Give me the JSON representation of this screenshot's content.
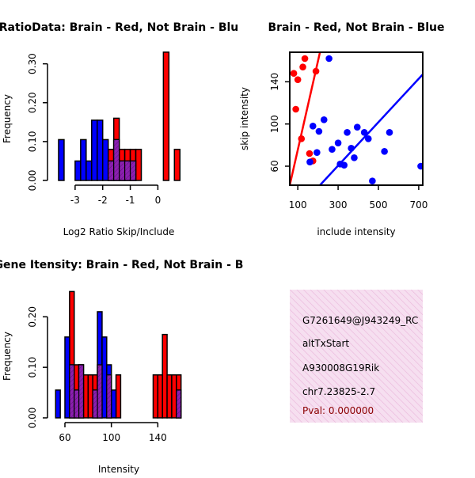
{
  "chart_data": [
    {
      "id": "hist_ratio",
      "type": "bar",
      "title": "RatioData: Brain - Red, Not Brain - Blu",
      "xlabel": "Log2 Ratio Skip/Include",
      "ylabel": "Frequency",
      "xlim": [
        -3.8,
        1.05
      ],
      "ylim": [
        0,
        0.34
      ],
      "xticks": [
        "-3",
        "-2",
        "-1",
        "0"
      ],
      "xtick_values": [
        -3,
        -2,
        -1,
        0
      ],
      "yticks": [
        "0.00",
        "0.10",
        "0.20",
        "0.30"
      ],
      "ytick_values": [
        0,
        0.1,
        0.2,
        0.3
      ],
      "series": [
        {
          "name": "Brain",
          "color": "#ff0000",
          "bins": [
            [
              -1.8,
              -1.6,
              0.08
            ],
            [
              -1.6,
              -1.4,
              0.16
            ],
            [
              -1.4,
              -1.2,
              0.08
            ],
            [
              -1.2,
              -1.0,
              0.08
            ],
            [
              -1.0,
              -0.8,
              0.08
            ],
            [
              -0.8,
              -0.6,
              0.08
            ],
            [
              0.2,
              0.4,
              0.33
            ],
            [
              0.6,
              0.8,
              0.08
            ]
          ]
        },
        {
          "name": "Not Brain",
          "color": "#0000ff",
          "bins": [
            [
              -3.6,
              -3.4,
              0.105
            ],
            [
              -3.0,
              -2.8,
              0.05
            ],
            [
              -2.8,
              -2.6,
              0.105
            ],
            [
              -2.6,
              -2.4,
              0.05
            ],
            [
              -2.4,
              -2.2,
              0.155
            ],
            [
              -2.2,
              -2.0,
              0.155
            ],
            [
              -2.0,
              -1.8,
              0.105
            ],
            [
              -1.8,
              -1.6,
              0.05
            ],
            [
              -1.6,
              -1.4,
              0.105
            ],
            [
              -1.4,
              -1.2,
              0.05
            ],
            [
              -1.2,
              -1.0,
              0.05
            ],
            [
              -1.0,
              -0.8,
              0.05
            ]
          ]
        }
      ],
      "overlap_color": "#8b1fb0"
    },
    {
      "id": "scatter_intensity",
      "type": "scatter",
      "title": "Brain - Red, Not Brain - Blue",
      "xlabel": "include intensity",
      "ylabel": "skip intensity",
      "xlim": [
        60,
        720
      ],
      "ylim": [
        42,
        168
      ],
      "xticks": [
        "100",
        "300",
        "500",
        "700"
      ],
      "xtick_values": [
        100,
        300,
        500,
        700
      ],
      "yticks": [
        "60",
        "100",
        "140"
      ],
      "ytick_values": [
        60,
        100,
        140
      ],
      "series": [
        {
          "name": "Brain",
          "color": "#ff0000",
          "points": [
            [
              80,
              148
            ],
            [
              90,
              114
            ],
            [
              100,
              142
            ],
            [
              118,
              86
            ],
            [
              125,
              154
            ],
            [
              135,
              162
            ],
            [
              158,
              72
            ],
            [
              175,
              65
            ],
            [
              190,
              150
            ]
          ],
          "fit": {
            "x": [
              60,
              210
            ],
            "y": [
              42,
              168
            ]
          }
        },
        {
          "name": "Not Brain",
          "color": "#0000ff",
          "points": [
            [
              160,
              64
            ],
            [
              175,
              98
            ],
            [
              195,
              73
            ],
            [
              205,
              93
            ],
            [
              230,
              104
            ],
            [
              255,
              162
            ],
            [
              270,
              76
            ],
            [
              300,
              82
            ],
            [
              310,
              62
            ],
            [
              330,
              61
            ],
            [
              345,
              92
            ],
            [
              365,
              77
            ],
            [
              380,
              68
            ],
            [
              395,
              97
            ],
            [
              430,
              92
            ],
            [
              450,
              86
            ],
            [
              470,
              46
            ],
            [
              530,
              74
            ],
            [
              555,
              92
            ],
            [
              710,
              60
            ]
          ],
          "fit": {
            "x": [
              210,
              720
            ],
            "y": [
              42,
              147
            ]
          }
        }
      ]
    },
    {
      "id": "hist_intensity",
      "type": "bar",
      "title": "Gene Itensity: Brain - Red, Not Brain - B",
      "xlabel": "Intensity",
      "ylabel": "Frequency",
      "xlim": [
        45,
        165
      ],
      "ylim": [
        0,
        0.26
      ],
      "xticks": [
        "60",
        "100",
        "140"
      ],
      "xtick_values": [
        60,
        100,
        140
      ],
      "yticks": [
        "0.00",
        "0.10",
        "0.20"
      ],
      "ytick_values": [
        0,
        0.1,
        0.2
      ],
      "series": [
        {
          "name": "Brain",
          "color": "#ff0000",
          "bins": [
            [
              64,
              68,
              0.25
            ],
            [
              68,
              72,
              0.105
            ],
            [
              72,
              76,
              0.105
            ],
            [
              76,
              80,
              0.085
            ],
            [
              80,
              84,
              0.085
            ],
            [
              84,
              88,
              0.085
            ],
            [
              88,
              92,
              0.105
            ],
            [
              96,
              100,
              0.085
            ],
            [
              104,
              108,
              0.085
            ],
            [
              136,
              140,
              0.085
            ],
            [
              140,
              144,
              0.085
            ],
            [
              144,
              148,
              0.165
            ],
            [
              148,
              152,
              0.085
            ],
            [
              152,
              156,
              0.085
            ],
            [
              156,
              160,
              0.085
            ]
          ]
        },
        {
          "name": "Not Brain",
          "color": "#0000ff",
          "bins": [
            [
              52,
              56,
              0.055
            ],
            [
              60,
              64,
              0.16
            ],
            [
              64,
              68,
              0.105
            ],
            [
              68,
              72,
              0.055
            ],
            [
              72,
              76,
              0.105
            ],
            [
              84,
              88,
              0.055
            ],
            [
              88,
              92,
              0.21
            ],
            [
              92,
              96,
              0.16
            ],
            [
              96,
              100,
              0.105
            ],
            [
              100,
              104,
              0.055
            ],
            [
              156,
              160,
              0.055
            ]
          ]
        }
      ],
      "overlap_color": "#8b1fb0"
    }
  ],
  "info_box": {
    "gene_id": "G7261649@J943249_RC",
    "event_type": "altTxStart",
    "gene_name": "A930008G19Rik",
    "location": "chr7.23825-2.7",
    "pval": "Pval: 0.000000",
    "pval_color": "#8b0000",
    "background_color": "#f3d3ea"
  }
}
